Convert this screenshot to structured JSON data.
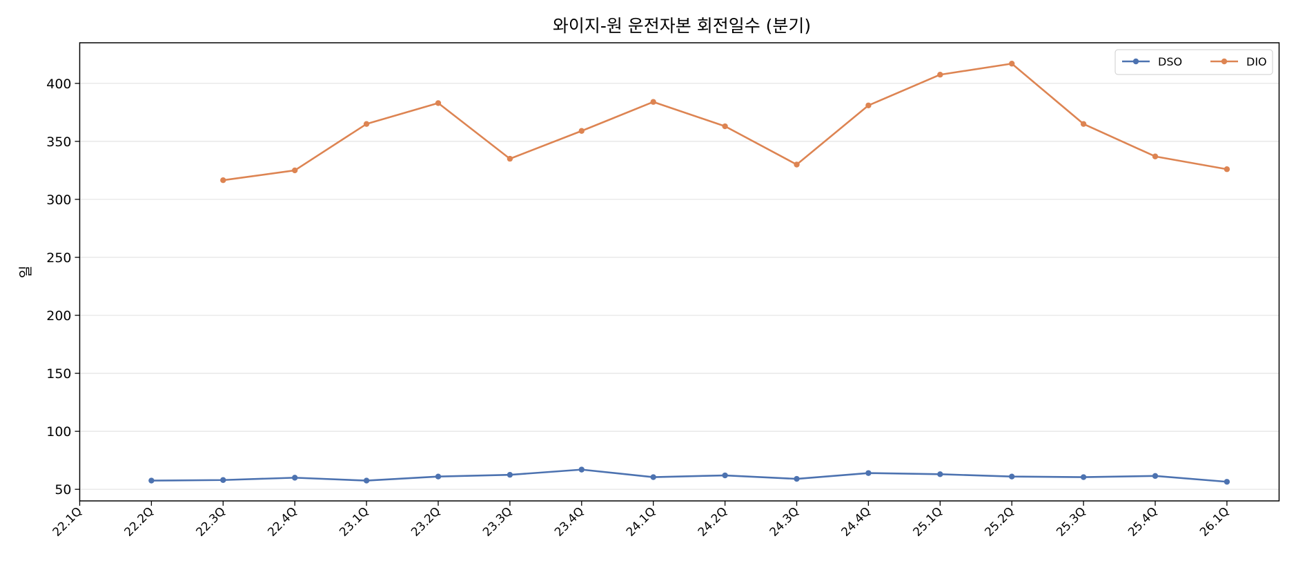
{
  "chart_data": {
    "type": "line",
    "title": "와이지-원 운전자본 회전일수 (분기)",
    "xlabel": "",
    "ylabel": "일",
    "categories": [
      "22.1Q",
      "22.2Q",
      "22.3Q",
      "22.4Q",
      "23.1Q",
      "23.2Q",
      "23.3Q",
      "23.4Q",
      "24.1Q",
      "24.2Q",
      "24.3Q",
      "24.4Q",
      "25.1Q",
      "25.2Q",
      "25.3Q",
      "25.4Q",
      "26.1Q"
    ],
    "series": [
      {
        "name": "DSO",
        "color": "#4c72b0",
        "values": [
          null,
          57.5,
          58,
          60,
          57.5,
          61,
          62.5,
          67,
          60.5,
          62,
          59,
          64,
          63,
          61,
          60.5,
          61.5,
          56.5
        ]
      },
      {
        "name": "DIO",
        "color": "#dd8452",
        "values": [
          null,
          null,
          316.5,
          325,
          365,
          383,
          335,
          359,
          384,
          363,
          330,
          381,
          407.5,
          417,
          365,
          337,
          326
        ]
      }
    ],
    "ylim": [
      40,
      435
    ],
    "yticks": [
      50,
      100,
      150,
      200,
      250,
      300,
      350,
      400
    ],
    "grid": "y",
    "legend": "top-right"
  }
}
